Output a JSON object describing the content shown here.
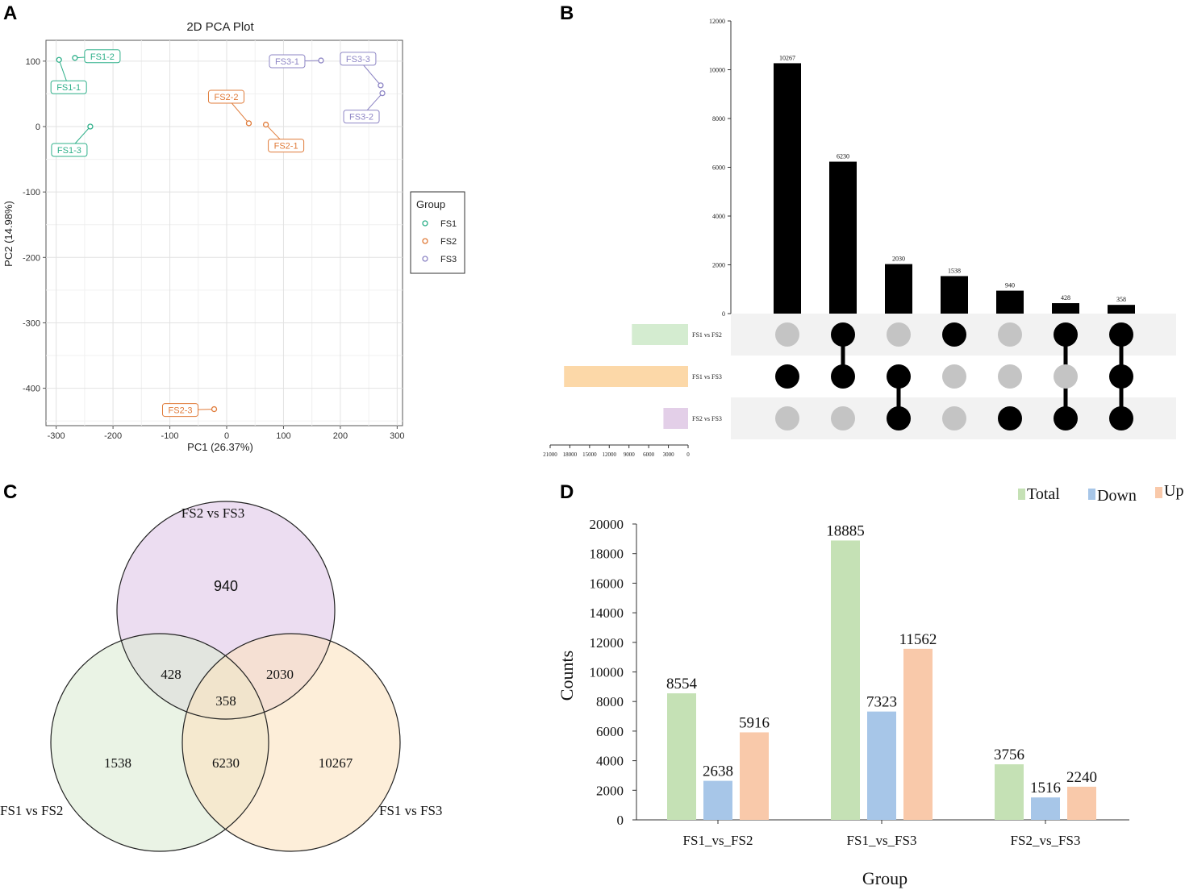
{
  "panels": {
    "a": "A",
    "b": "B",
    "c": "C",
    "d": "D"
  },
  "colors": {
    "fs1": "#2fb08a",
    "fs2": "#e07b39",
    "fs3": "#8e86c5",
    "total": "#c5e1b5",
    "down": "#a7c6e8",
    "up": "#f9c9aa",
    "venn_fs2fs3": "#e6d2ec",
    "venn_fs1fs2": "#dcebd3",
    "venn_fs1fs3": "#fbe2bf",
    "upset_fs1fs2": "#d4ecd0",
    "upset_fs1fs3": "#fcd8a8",
    "upset_fs2fs3": "#e3cfe8"
  },
  "chart_data": [
    {
      "type": "scatter",
      "title": "2D PCA Plot",
      "xlabel": "PC1 (26.37%)",
      "ylabel": "PC2 (14.98%)",
      "xlim": [
        -315,
        300
      ],
      "ylim": [
        -460,
        120
      ],
      "xticks": [
        -300,
        -200,
        -100,
        0,
        100,
        200,
        300
      ],
      "xtick_labels": [
        "-300",
        "-200",
        "-100",
        "0",
        "100",
        "200",
        "300"
      ],
      "yticks": [
        100,
        0,
        -100,
        -200,
        -300,
        -400
      ],
      "ytick_labels": [
        "100",
        "0",
        "-100",
        "-200",
        "-300",
        "-400"
      ],
      "legend": {
        "title": "Group",
        "entries": [
          "FS1",
          "FS2",
          "FS3"
        ],
        "placement": "right"
      },
      "points": [
        {
          "label": "FS1-1",
          "group": "FS1",
          "x": -295,
          "y": 102,
          "label_side": "below"
        },
        {
          "label": "FS1-2",
          "group": "FS1",
          "x": -267,
          "y": 105,
          "label_side": "right"
        },
        {
          "label": "FS1-3",
          "group": "FS1",
          "x": -240,
          "y": 0,
          "label_side": "below-left"
        },
        {
          "label": "FS2-1",
          "group": "FS2",
          "x": 69,
          "y": 3,
          "label_side": "below-right"
        },
        {
          "label": "FS2-2",
          "group": "FS2",
          "x": 39,
          "y": 5,
          "label_side": "above-left"
        },
        {
          "label": "FS2-3",
          "group": "FS2",
          "x": -22,
          "y": -432,
          "label_side": "left"
        },
        {
          "label": "FS3-1",
          "group": "FS3",
          "x": 166,
          "y": 101,
          "label_side": "left"
        },
        {
          "label": "FS3-2",
          "group": "FS3",
          "x": 274,
          "y": 51,
          "label_side": "below-left"
        },
        {
          "label": "FS3-3",
          "group": "FS3",
          "x": 271,
          "y": 63,
          "label_side": "above-left"
        }
      ]
    },
    {
      "type": "bar",
      "subtype": "upset",
      "ylim": [
        0,
        12000
      ],
      "yticks": [
        0,
        2000,
        4000,
        6000,
        8000,
        10000,
        12000
      ],
      "ytick_labels": [
        "0",
        "2000",
        "4000",
        "6000",
        "8000",
        "10000",
        "12000"
      ],
      "values": [
        10267,
        6230,
        2030,
        1538,
        940,
        428,
        358
      ],
      "value_labels": [
        "10267",
        "6230",
        "2030",
        "1538",
        "940",
        "428",
        "358"
      ],
      "sets": [
        "FS1 vs FS2",
        "FS1 vs FS3",
        "FS2 vs FS3"
      ],
      "set_sizes": [
        8554,
        18885,
        3756
      ],
      "set_axis_ticks": [
        "21000",
        "18000",
        "15000",
        "12000",
        "9000",
        "6000",
        "3000",
        "0"
      ],
      "set_axis_values": [
        21000,
        18000,
        15000,
        12000,
        9000,
        6000,
        3000,
        0
      ],
      "membership": [
        [
          0,
          1,
          0
        ],
        [
          1,
          1,
          0
        ],
        [
          0,
          1,
          1
        ],
        [
          1,
          0,
          0
        ],
        [
          0,
          0,
          1
        ],
        [
          1,
          0,
          1
        ],
        [
          1,
          1,
          1
        ]
      ]
    },
    {
      "type": "venn",
      "sets": [
        "FS2 vs FS3",
        "FS1 vs FS2",
        "FS1 vs FS3"
      ],
      "regions": {
        "only_fs2fs3": "940",
        "only_fs1fs2": "1538",
        "only_fs1fs3": "10267",
        "fs1fs2_fs2fs3": "428",
        "fs2fs3_fs1fs3": "2030",
        "fs1fs2_fs1fs3": "6230",
        "all": "358"
      }
    },
    {
      "type": "bar",
      "categories": [
        "FS1_vs_FS2",
        "FS1_vs_FS3",
        "FS2_vs_FS3"
      ],
      "series": [
        {
          "name": "Total",
          "values": [
            8554,
            18885,
            3756
          ]
        },
        {
          "name": "Down",
          "values": [
            2638,
            7323,
            1516
          ]
        },
        {
          "name": "Up",
          "values": [
            5916,
            11562,
            2240
          ]
        }
      ],
      "xlabel": "Group",
      "ylabel": "Counts",
      "ylim": [
        0,
        20000
      ],
      "yticks": [
        0,
        2000,
        4000,
        6000,
        8000,
        10000,
        12000,
        14000,
        16000,
        18000,
        20000
      ],
      "ytick_labels": [
        "0",
        "2000",
        "4000",
        "6000",
        "8000",
        "10000",
        "12000",
        "14000",
        "16000",
        "18000",
        "20000"
      ],
      "legend_placement": "top-right"
    }
  ]
}
